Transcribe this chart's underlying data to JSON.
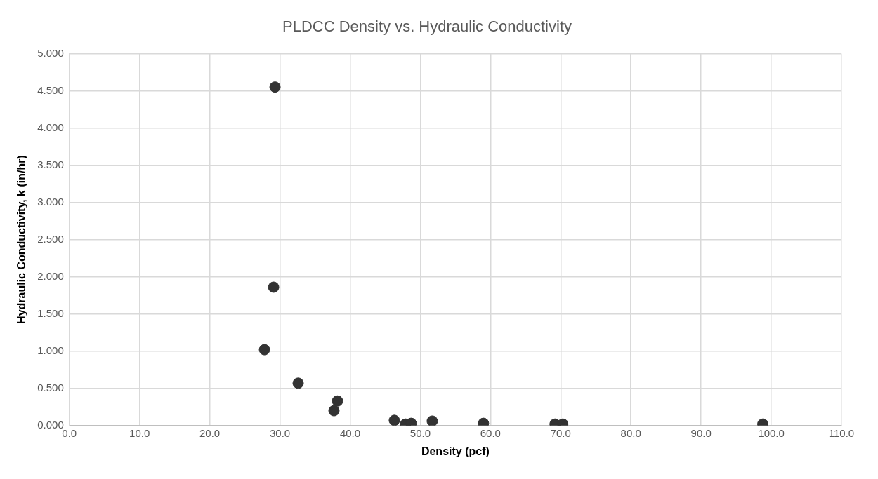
{
  "chart_data": {
    "type": "scatter",
    "title": "PLDCC Density vs. Hydraulic Conductivity",
    "xlabel": "Density (pcf)",
    "ylabel": "Hydraulic Conductivity, k (in/hr)",
    "x": [
      29.3,
      29.1,
      27.8,
      32.6,
      38.2,
      37.7,
      46.3,
      47.9,
      48.7,
      51.7,
      59.0,
      69.2,
      70.3,
      98.8
    ],
    "values": [
      4.55,
      1.86,
      1.02,
      0.57,
      0.33,
      0.2,
      0.07,
      0.02,
      0.03,
      0.06,
      0.03,
      0.02,
      0.02,
      0.02
    ],
    "color": "#333333",
    "marker": "circle",
    "xlim": [
      0,
      110
    ],
    "xticks": [
      {
        "value": 0,
        "label": "0.0"
      },
      {
        "value": 10,
        "label": "10.0"
      },
      {
        "value": 20,
        "label": "20.0"
      },
      {
        "value": 30,
        "label": "30.0"
      },
      {
        "value": 40,
        "label": "40.0"
      },
      {
        "value": 50,
        "label": "50.0"
      },
      {
        "value": 60,
        "label": "60.0"
      },
      {
        "value": 70,
        "label": "70.0"
      },
      {
        "value": 80,
        "label": "80.0"
      },
      {
        "value": 90,
        "label": "90.0"
      },
      {
        "value": 100,
        "label": "100.0"
      },
      {
        "value": 110,
        "label": "110.0"
      }
    ],
    "ylim": [
      0,
      5
    ],
    "yticks": [
      {
        "value": 0,
        "label": "0.000"
      },
      {
        "value": 0.5,
        "label": "0.500"
      },
      {
        "value": 1,
        "label": "1.000"
      },
      {
        "value": 1.5,
        "label": "1.500"
      },
      {
        "value": 2,
        "label": "2.000"
      },
      {
        "value": 2.5,
        "label": "2.500"
      },
      {
        "value": 3,
        "label": "3.000"
      },
      {
        "value": 3.5,
        "label": "3.500"
      },
      {
        "value": 4,
        "label": "4.000"
      },
      {
        "value": 4.5,
        "label": "4.500"
      },
      {
        "value": 5,
        "label": "5.000"
      }
    ],
    "grid": true,
    "legend": false
  }
}
